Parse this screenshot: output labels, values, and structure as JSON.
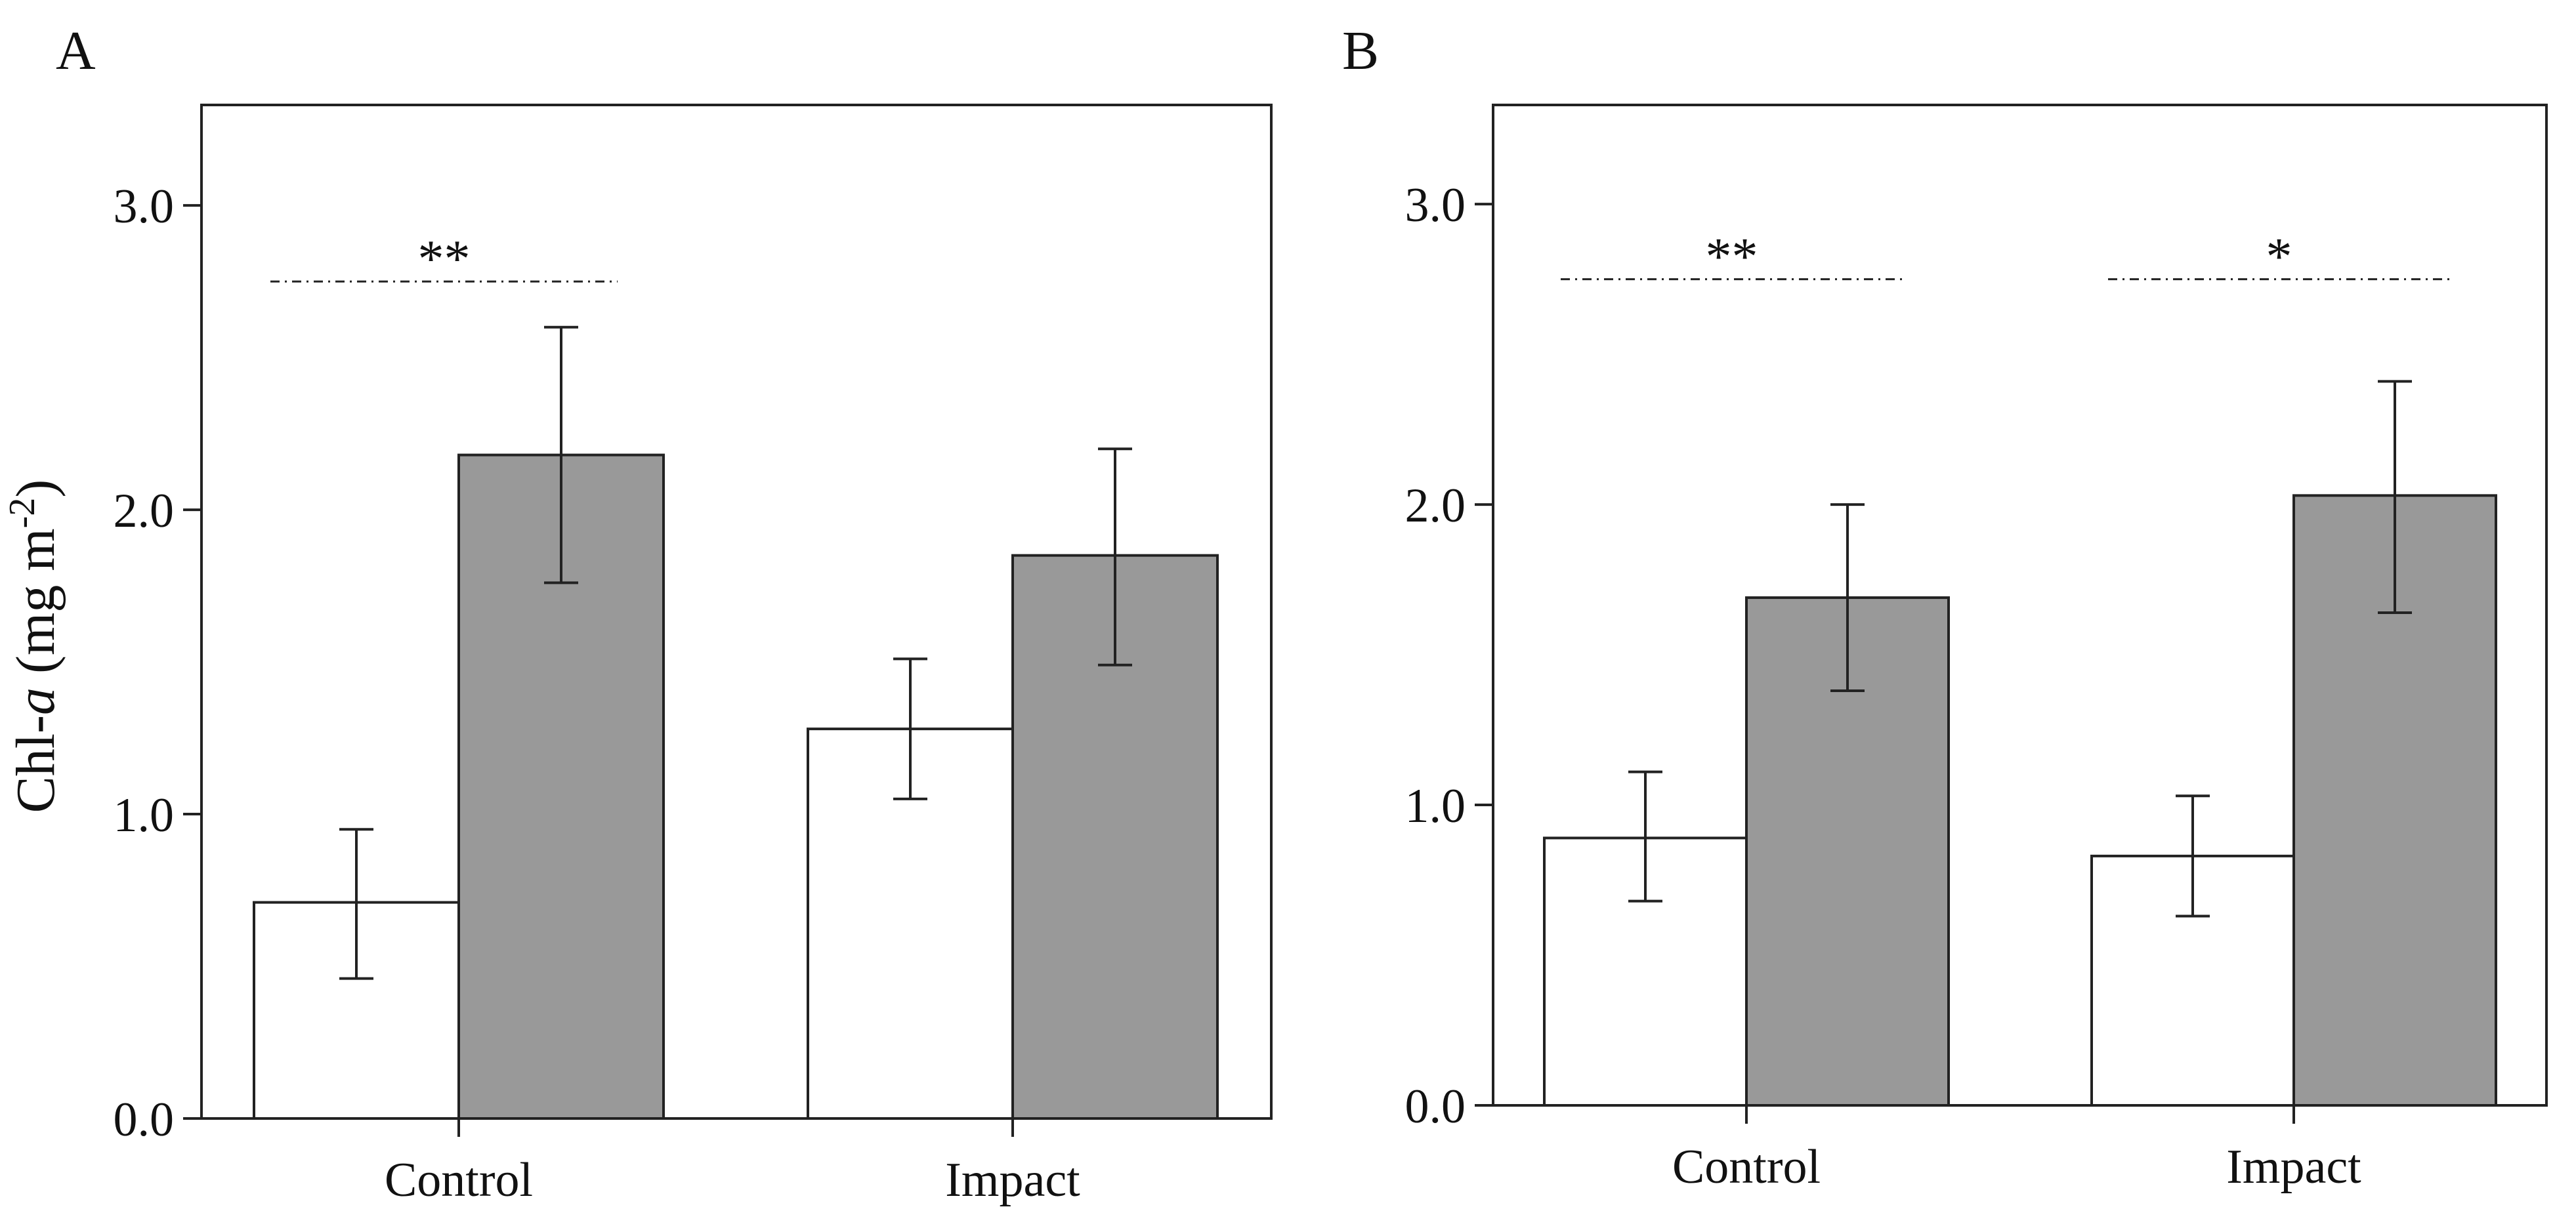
{
  "figure": {
    "ylabel_prefix": "Chl-",
    "ylabel_italic": "a",
    "ylabel_suffix": " (mg m",
    "ylabel_exponent": "-2",
    "ylabel_close": ")"
  },
  "chart_data": [
    {
      "type": "bar",
      "panel_label": "A",
      "categories": [
        "Control",
        "Impact"
      ],
      "series": [
        {
          "name": "white",
          "color": "#ffffff",
          "values": [
            0.71,
            1.28
          ],
          "err_low": [
            0.46,
            1.05
          ],
          "err_high": [
            0.95,
            1.51
          ]
        },
        {
          "name": "grey",
          "color": "#999999",
          "values": [
            2.18,
            1.85
          ],
          "err_low": [
            1.76,
            1.49
          ],
          "err_high": [
            2.6,
            2.2
          ]
        }
      ],
      "yticks": [
        "0.0",
        "1.0",
        "2.0",
        "3.0"
      ],
      "ylim": [
        0,
        3.33
      ],
      "xlabel": "",
      "ylabel": "Chl-a (mg m-2)",
      "significance": [
        {
          "category_index": 0,
          "text": "**",
          "y": 2.75
        }
      ]
    },
    {
      "type": "bar",
      "panel_label": "B",
      "categories": [
        "Control",
        "Impact"
      ],
      "series": [
        {
          "name": "white",
          "color": "#ffffff",
          "values": [
            0.89,
            0.83
          ],
          "err_low": [
            0.68,
            0.63
          ],
          "err_high": [
            1.11,
            1.03
          ]
        },
        {
          "name": "grey",
          "color": "#999999",
          "values": [
            1.69,
            2.03
          ],
          "err_low": [
            1.38,
            1.64
          ],
          "err_high": [
            2.0,
            2.41
          ]
        }
      ],
      "yticks": [
        "0.0",
        "1.0",
        "2.0",
        "3.0"
      ],
      "ylim": [
        0,
        3.33
      ],
      "xlabel": "",
      "ylabel": "",
      "significance": [
        {
          "category_index": 0,
          "text": "**",
          "y": 2.75
        },
        {
          "category_index": 1,
          "text": "*",
          "y": 2.75
        }
      ]
    }
  ]
}
